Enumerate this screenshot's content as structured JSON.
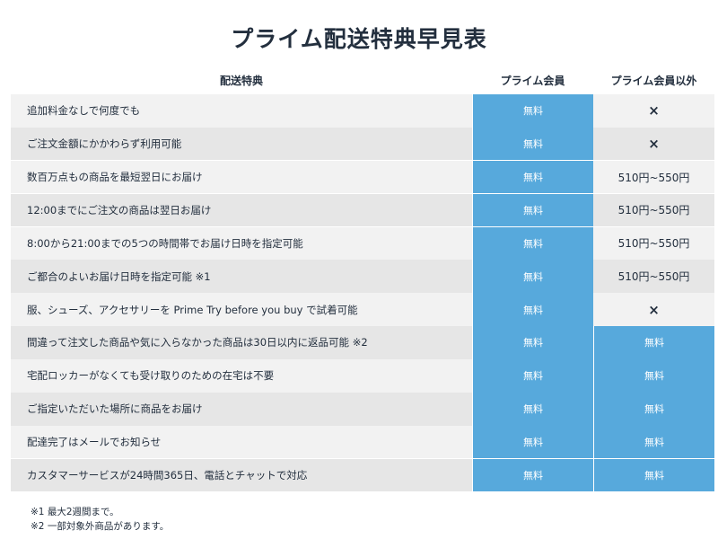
{
  "title": "プライム配送特典早見表",
  "headers": {
    "feature": "配送特典",
    "prime": "プライム会員",
    "non_prime": "プライム会員以外"
  },
  "rows": [
    {
      "feature": "追加料金なしで何度でも",
      "prime": "無料",
      "non_prime": "×",
      "non_prime_type": "cross"
    },
    {
      "feature": "ご注文金額にかかわらず利用可能",
      "prime": "無料",
      "non_prime": "×",
      "non_prime_type": "cross"
    },
    {
      "feature": "数百万点もの商品を最短翌日にお届け",
      "prime": "無料",
      "non_prime": "510円~550円",
      "non_prime_type": "text"
    },
    {
      "feature": "12:00までにご注文の商品は翌日お届け",
      "prime": "無料",
      "non_prime": "510円~550円",
      "non_prime_type": "text"
    },
    {
      "feature": "8:00から21:00までの5つの時間帯でお届け日時を指定可能",
      "prime": "無料",
      "non_prime": "510円~550円",
      "non_prime_type": "text"
    },
    {
      "feature": "ご都合のよいお届け日時を指定可能 ※1",
      "prime": "無料",
      "non_prime": "510円~550円",
      "non_prime_type": "text"
    },
    {
      "feature": "服、シューズ、アクセサリーを Prime Try before you buy で試着可能",
      "prime": "無料",
      "non_prime": "×",
      "non_prime_type": "cross"
    },
    {
      "feature": "間違って注文した商品や気に入らなかった商品は30日以内に返品可能 ※2",
      "prime": "無料",
      "non_prime": "無料",
      "non_prime_type": "free"
    },
    {
      "feature": "宅配ロッカーがなくても受け取りのための在宅は不要",
      "prime": "無料",
      "non_prime": "無料",
      "non_prime_type": "free"
    },
    {
      "feature": "ご指定いただいた場所に商品をお届け",
      "prime": "無料",
      "non_prime": "無料",
      "non_prime_type": "free"
    },
    {
      "feature": "配達完了はメールでお知らせ",
      "prime": "無料",
      "non_prime": "無料",
      "non_prime_type": "free"
    },
    {
      "feature": "カスタマーサービスが24時間365日、電話とチャットで対応",
      "prime": "無料",
      "non_prime": "無料",
      "non_prime_type": "free"
    }
  ],
  "notes": [
    "※1 最大2週間まで。",
    "※2 一部対象外商品があります。"
  ],
  "colors": {
    "accent_blue": "#57a9dc",
    "text_dark": "#232f3e"
  }
}
